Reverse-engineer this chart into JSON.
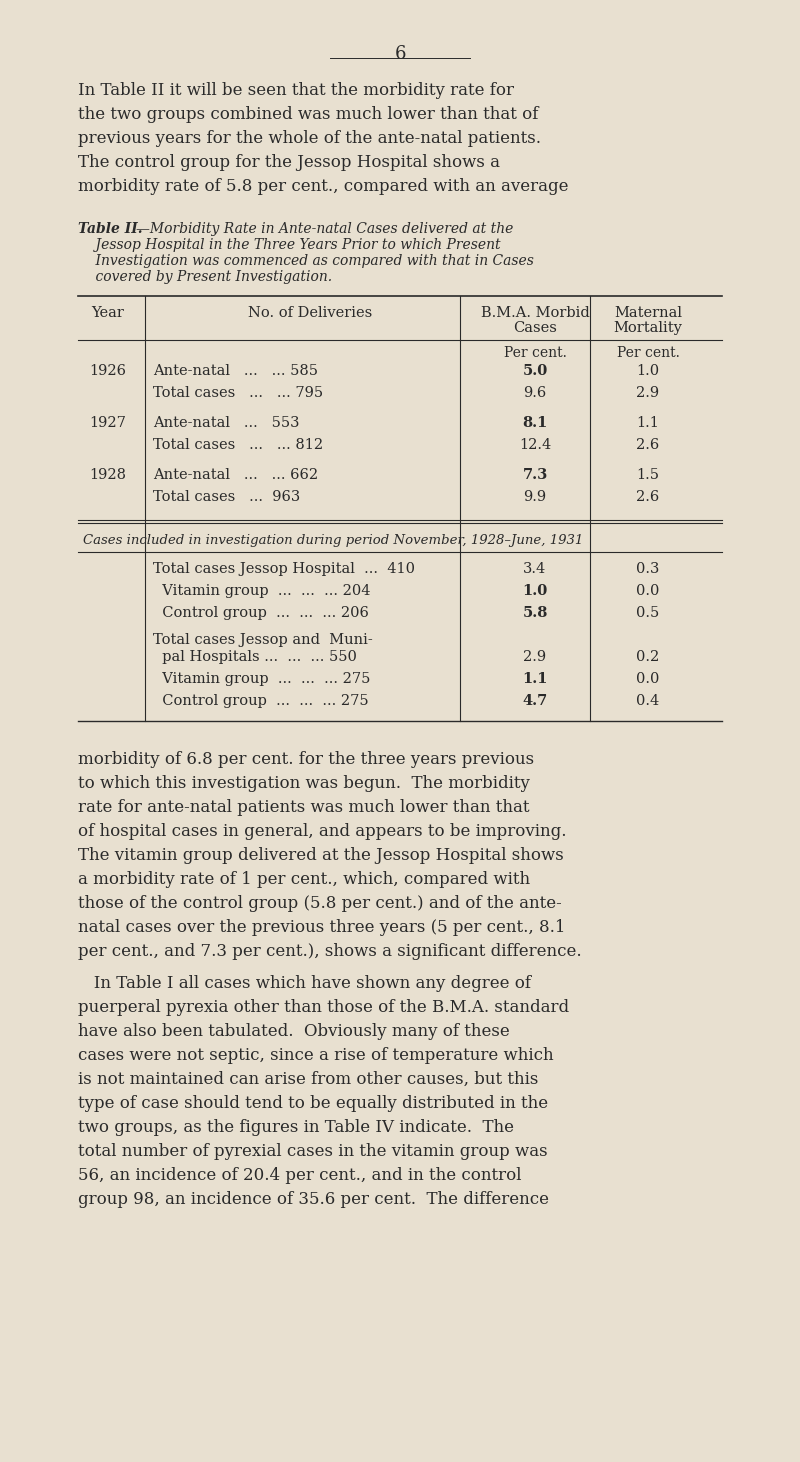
{
  "bg_color": "#e8e0d0",
  "text_color": "#2a2a2a",
  "page_number": "6",
  "intro_lines": [
    "In Table II it will be seen that the morbidity rate for",
    "the two groups combined was much lower than that of",
    "previous years for the whole of the ante-natal patients.",
    "The control group for the Jessop Hospital shows a",
    "morbidity rate of 5.8 per cent., compared with an average"
  ],
  "caption_bold": "Table II.",
  "caption_italic_lines": [
    "—Morbidity Rate in Ante-natal Cases delivered at the",
    "    Jessop Hospital in the Three Years Prior to which Present",
    "    Investigation was commenced as compared with that in Cases",
    "    covered by Present Investigation."
  ],
  "section_italic": "Cases included in investigation during period November, 1928–June, 1931",
  "body1_lines": [
    "morbidity of 6.8 per cent. for the three years previous",
    "to which this investigation was begun.  The morbidity",
    "rate for ante-natal patients was much lower than that",
    "of hospital cases in general, and appears to be improving.",
    "The vitamin group delivered at the Jessop Hospital shows",
    "a morbidity rate of 1 per cent., which, compared with",
    "those of the control group (5.8 per cent.) and of the ante-",
    "natal cases over the previous three years (5 per cent., 8.1",
    "per cent., and 7.3 per cent.), shows a significant difference."
  ],
  "body2_lines": [
    "   In Table I all cases which have shown any degree of",
    "puerperal pyrexia other than those of the B.M.A. standard",
    "have also been tabulated.  Obviously many of these",
    "cases were not septic, since a rise of temperature which",
    "is not maintained can arise from other causes, but this",
    "type of case should tend to be equally distributed in the",
    "two groups, as the figures in Table IV indicate.  The",
    "total number of pyrexial cases in the vitamin group was",
    "56, an incidence of 20.4 per cent., and in the control",
    "group 98, an incidence of 35.6 per cent.  The difference"
  ]
}
